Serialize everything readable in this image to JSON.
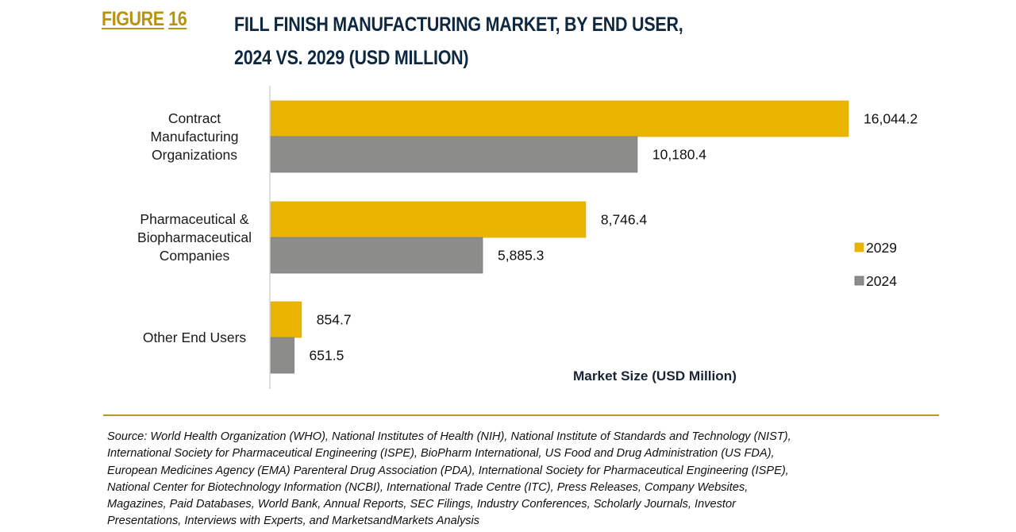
{
  "figure": {
    "label_prefix": "FIGURE",
    "label_number": "16",
    "title_line1": "FILL FINISH MANUFACTURING MARKET, BY END USER,",
    "title_line2": "2024 VS. 2029 (USD MILLION)"
  },
  "colors": {
    "accent_gold": "#b8930f",
    "title_navy": "#0d2840",
    "series_2029": "#ebb400",
    "series_2024": "#8c8c8a",
    "rule": "#b8962e"
  },
  "chart_data": {
    "type": "bar",
    "orientation": "horizontal",
    "title": "FILL FINISH MANUFACTURING MARKET, BY END USER, 2024 VS. 2029 (USD MILLION)",
    "xlabel": "Market Size (USD Million)",
    "ylabel": "",
    "categories": [
      [
        "Contract",
        "Manufacturing",
        "Organizations"
      ],
      [
        "Pharmaceutical &",
        "Biopharmaceutical",
        "Companies"
      ],
      [
        "Other End Users"
      ]
    ],
    "series": [
      {
        "name": "2029",
        "color": "#ebb400",
        "values": [
          16044.2,
          8746.4,
          854.7
        ],
        "labels": [
          "16,044.2",
          "8,746.4",
          "854.7"
        ]
      },
      {
        "name": "2024",
        "color": "#8c8c8a",
        "values": [
          10180.4,
          5885.3,
          651.5
        ],
        "labels": [
          "10,180.4",
          "5,885.3",
          "651.5"
        ]
      }
    ],
    "xlim": [
      0,
      16044.2
    ],
    "grid": false,
    "x_ticks_shown": false,
    "data_labels": true,
    "legend": {
      "position": "right",
      "entries": [
        "2029",
        "2024"
      ]
    }
  },
  "source": {
    "lines": [
      "Source: World Health Organization (WHO), National Institutes of Health (NIH), National Institute of Standards and Technology (NIST),",
      "International Society for Pharmaceutical Engineering (ISPE), BioPharm International, US Food and Drug Administration (US FDA),",
      "European Medicines Agency (EMA) Parenteral Drug Association (PDA), International Society for Pharmaceutical Engineering (ISPE),",
      "National Center for Biotechnology Information (NCBI), International Trade Centre (ITC), Press Releases, Company Websites,",
      "Magazines, Paid Databases, World Bank, Annual Reports, SEC Filings, Industry Conferences, Scholarly Journals, Investor",
      "Presentations, Interviews with Experts, and MarketsandMarkets Analysis"
    ]
  }
}
